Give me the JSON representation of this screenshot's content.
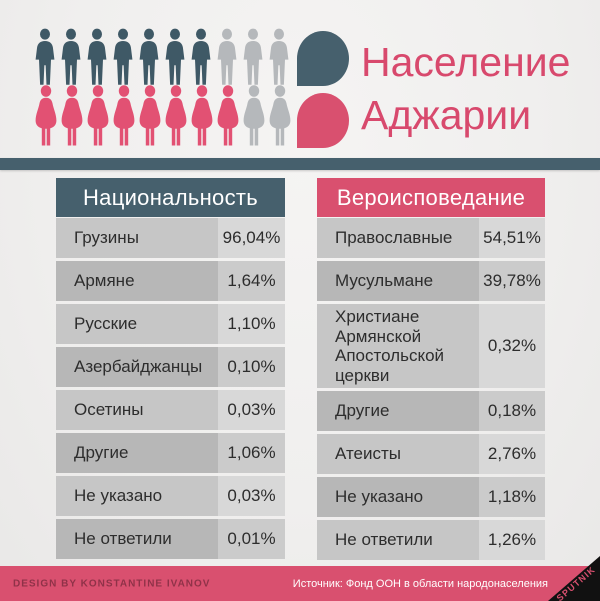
{
  "header": {
    "title_line1": "Население",
    "title_line2": "Аджарии",
    "pictogram": {
      "male_total": 10,
      "male_filled": 7,
      "female_total": 10,
      "female_filled": 8
    }
  },
  "tables": [
    {
      "title": "Национальность",
      "rows": [
        {
          "label": "Грузины",
          "value": "96,04%"
        },
        {
          "label": "Армяне",
          "value": "1,64%"
        },
        {
          "label": "Русские",
          "value": "1,10%"
        },
        {
          "label": "Азербайджанцы",
          "value": "0,10%"
        },
        {
          "label": "Осетины",
          "value": "0,03%"
        },
        {
          "label": "Другие",
          "value": "1,06%"
        },
        {
          "label": "Не указано",
          "value": "0,03%"
        },
        {
          "label": "Не ответили",
          "value": "0,01%"
        }
      ]
    },
    {
      "title": "Вероисповедание",
      "rows": [
        {
          "label": "Православные",
          "value": "54,51%"
        },
        {
          "label": "Мусульмане",
          "value": "39,78%"
        },
        {
          "label": "Христиане Армянской Апостольской церкви",
          "value": "0,32%",
          "tall": true
        },
        {
          "label": "Другие",
          "value": "0,18%"
        },
        {
          "label": "Атеисты",
          "value": "2,76%"
        },
        {
          "label": "Не указано",
          "value": "1,18%"
        },
        {
          "label": "Не ответили",
          "value": "1,26%"
        }
      ]
    }
  ],
  "footer": {
    "credit": "DESIGN BY KONSTANTINE IVANOV",
    "source": "Источник: Фонд ООН в области народонаселения",
    "brand": "SPUTNIK"
  },
  "colors": {
    "slate": "#46606d",
    "pink": "#d9506f",
    "title_pink": "#d8496d",
    "figure_slate": "#3f5966",
    "figure_pink": "#e25173",
    "figure_gray": "#b5b8bb",
    "ribbon_black": "#111111"
  },
  "chart_data": [
    {
      "type": "table",
      "title": "Национальность",
      "categories": [
        "Грузины",
        "Армяне",
        "Русские",
        "Азербайджанцы",
        "Осетины",
        "Другие",
        "Не указано",
        "Не ответили"
      ],
      "values": [
        96.04,
        1.64,
        1.1,
        0.1,
        0.03,
        1.06,
        0.03,
        0.01
      ],
      "unit": "%"
    },
    {
      "type": "table",
      "title": "Вероисповедание",
      "categories": [
        "Православные",
        "Мусульмане",
        "Христиане Армянской Апостольской церкви",
        "Другие",
        "Атеисты",
        "Не указано",
        "Не ответили"
      ],
      "values": [
        54.51,
        39.78,
        0.32,
        0.18,
        2.76,
        1.18,
        1.26
      ],
      "unit": "%"
    }
  ]
}
